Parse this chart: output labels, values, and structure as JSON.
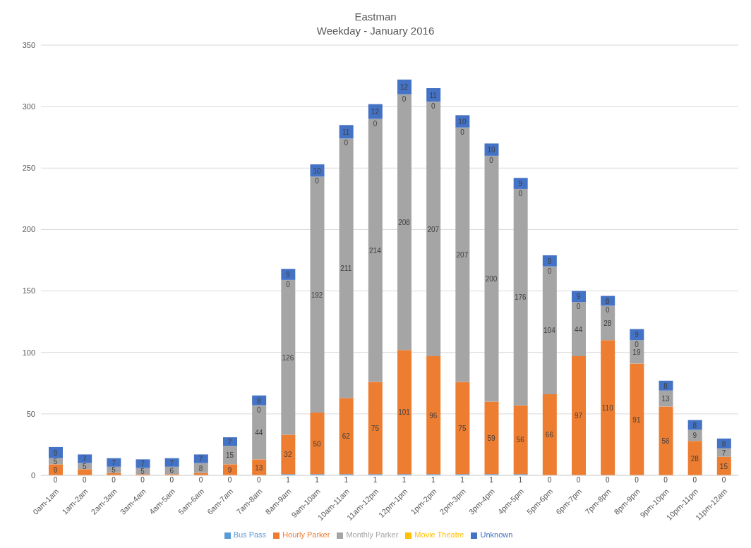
{
  "chart_data": {
    "type": "bar",
    "title": "Eastman",
    "subtitle": "Weekday - January 2016",
    "stacked": true,
    "grid": "y",
    "legend": "bottom",
    "ylim": [
      0,
      350
    ],
    "yticks": [
      0,
      50,
      100,
      150,
      200,
      250,
      300,
      350
    ],
    "categories": [
      "0am-1am",
      "1am-2am",
      "2am-3am",
      "3am-4am",
      "4am-5am",
      "5am-6am",
      "6am-7am",
      "7am-8am",
      "8am-9am",
      "9am-10am",
      "10am-11am",
      "11am-12pm",
      "12pm-1pm",
      "1pm-2pm",
      "2pm-3pm",
      "3pm-4pm",
      "4pm-5pm",
      "5pm-6pm",
      "6pm-7pm",
      "7pm-8pm",
      "8pm-9pm",
      "9pm-10pm",
      "10pm-11pm",
      "11pm-12am"
    ],
    "series": [
      {
        "name": "Bus Pass",
        "color": "#5b9bd5",
        "values": [
          0,
          0,
          0,
          0,
          0,
          0,
          0,
          0,
          1,
          1,
          1,
          1,
          1,
          1,
          1,
          1,
          1,
          0,
          0,
          0,
          0,
          0,
          0,
          0
        ],
        "value_labels": [
          "0",
          "0",
          "0",
          "0",
          "0",
          "0",
          "0",
          "0",
          "1",
          "1",
          "1",
          "1",
          "1",
          "1",
          "1",
          "1",
          "1",
          "0",
          "0",
          "0",
          "0",
          "0",
          "0",
          "0"
        ]
      },
      {
        "name": "Hourly Parker",
        "color": "#ed7d31",
        "values": [
          9,
          5,
          2,
          1,
          1,
          2,
          9,
          13,
          32,
          50,
          62,
          75,
          101,
          96,
          75,
          59,
          56,
          66,
          97,
          110,
          91,
          56,
          28,
          15
        ],
        "value_labels": [
          "9",
          null,
          null,
          null,
          null,
          null,
          "9",
          "13",
          "32",
          "50",
          "62",
          "75",
          "101",
          "96",
          "75",
          "59",
          "56",
          "66",
          "97",
          "110",
          "91",
          "56",
          "28",
          "15"
        ]
      },
      {
        "name": "Monthly Parker",
        "color": "#a5a5a5",
        "values": [
          5,
          5,
          5,
          5,
          6,
          8,
          15,
          44,
          126,
          192,
          211,
          214,
          208,
          207,
          207,
          200,
          176,
          104,
          44,
          28,
          19,
          13,
          9,
          7
        ],
        "value_labels": [
          "5",
          "5",
          "5",
          "5",
          "6",
          "8",
          "15",
          "44",
          "126",
          "192",
          "211",
          "214",
          "208",
          "207",
          "207",
          "200",
          "176",
          "104",
          "44",
          "28",
          "19",
          "13",
          "9",
          "7"
        ]
      },
      {
        "name": "Movie Theatre",
        "color": "#ffc000",
        "values": [
          0,
          0,
          0,
          0,
          0,
          0,
          0,
          0,
          0,
          0,
          0,
          0,
          0,
          0,
          0,
          0,
          0,
          0,
          0,
          0,
          0,
          0,
          0,
          0
        ],
        "value_labels": [
          null,
          null,
          null,
          null,
          null,
          null,
          null,
          "0",
          "0",
          "0",
          "0",
          "0",
          "0",
          "0",
          "0",
          "0",
          "0",
          "0",
          "0",
          "0",
          "0",
          null,
          null,
          null
        ]
      },
      {
        "name": "Unknown",
        "color": "#4472c4",
        "values": [
          9,
          7,
          7,
          7,
          7,
          7,
          7,
          8,
          9,
          10,
          11,
          12,
          12,
          11,
          10,
          10,
          9,
          9,
          9,
          8,
          9,
          8,
          8,
          8
        ],
        "value_labels": [
          "9",
          "7",
          "7",
          "7",
          "7",
          "7",
          "7",
          "8",
          "9",
          "10",
          "11",
          "12",
          "12",
          "11",
          "10",
          "10",
          "9",
          "9",
          "9",
          "8",
          "9",
          "8",
          "8",
          "8"
        ]
      }
    ]
  }
}
